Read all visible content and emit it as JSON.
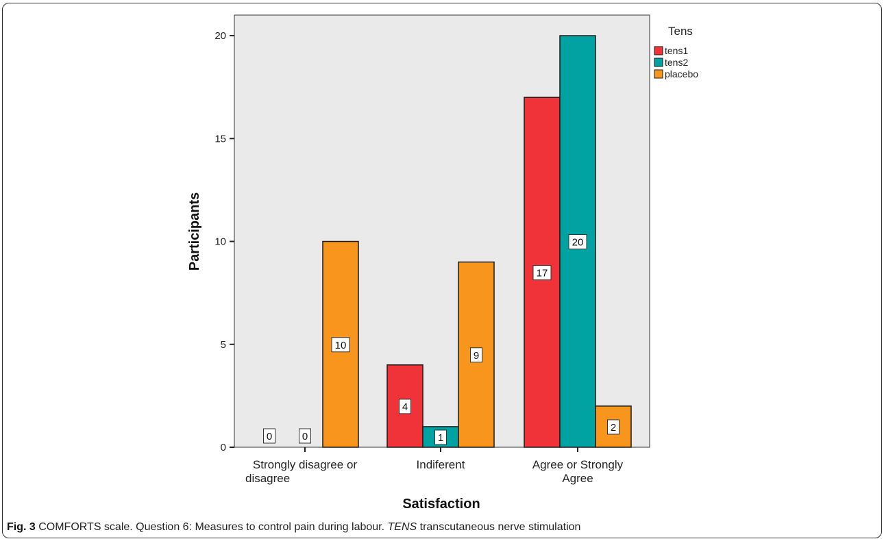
{
  "caption": {
    "label": "Fig. 3",
    "text_before": " COMFORTS scale. Question 6: Measures to control pain during labour. ",
    "abbrev": "TENS",
    "text_after": " transcutaneous nerve stimulation"
  },
  "chart_data": {
    "type": "bar",
    "title": "",
    "xlabel": "Satisfaction",
    "ylabel": "Participants",
    "ylim": [
      0,
      21
    ],
    "yticks": [
      0,
      5,
      10,
      15,
      20
    ],
    "categories": [
      [
        "Strongly disagree or",
        "disagree"
      ],
      [
        "Indiferent"
      ],
      [
        "Agree or Strongly",
        "Agree"
      ]
    ],
    "legend_title": "Tens",
    "legend_position": "top-right",
    "grid": false,
    "series": [
      {
        "name": "tens1",
        "color": "#ef3338",
        "values": [
          0,
          4,
          17
        ]
      },
      {
        "name": "tens2",
        "color": "#00a3a1",
        "values": [
          0,
          1,
          20
        ]
      },
      {
        "name": "placebo",
        "color": "#f7951d",
        "values": [
          10,
          9,
          2
        ]
      }
    ],
    "plot_background": "#eaeaea"
  }
}
